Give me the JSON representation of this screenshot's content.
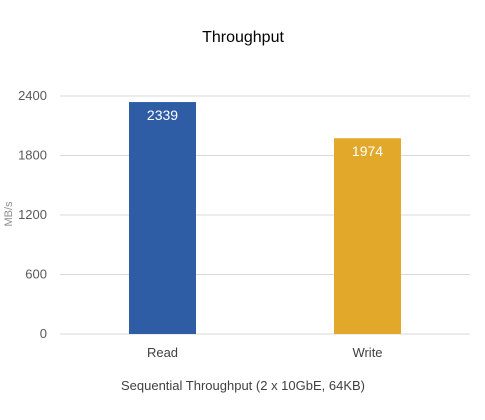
{
  "chart_data": {
    "type": "bar",
    "title": "Throughput",
    "xlabel": "Sequential Throughput (2 x 10GbE, 64KB)",
    "ylabel": "MB/s",
    "categories": [
      "Read",
      "Write"
    ],
    "values": [
      2339,
      1974
    ],
    "data_labels": [
      "2339",
      "1974"
    ],
    "colors": [
      "#2E5DA6",
      "#E2A82A"
    ],
    "ylim": [
      0,
      2400
    ],
    "yticks": [
      0,
      600,
      1200,
      1800,
      2400
    ],
    "ytick_labels": [
      "0",
      "600",
      "1200",
      "1800",
      "2400"
    ],
    "grid": true,
    "legend": "none"
  }
}
